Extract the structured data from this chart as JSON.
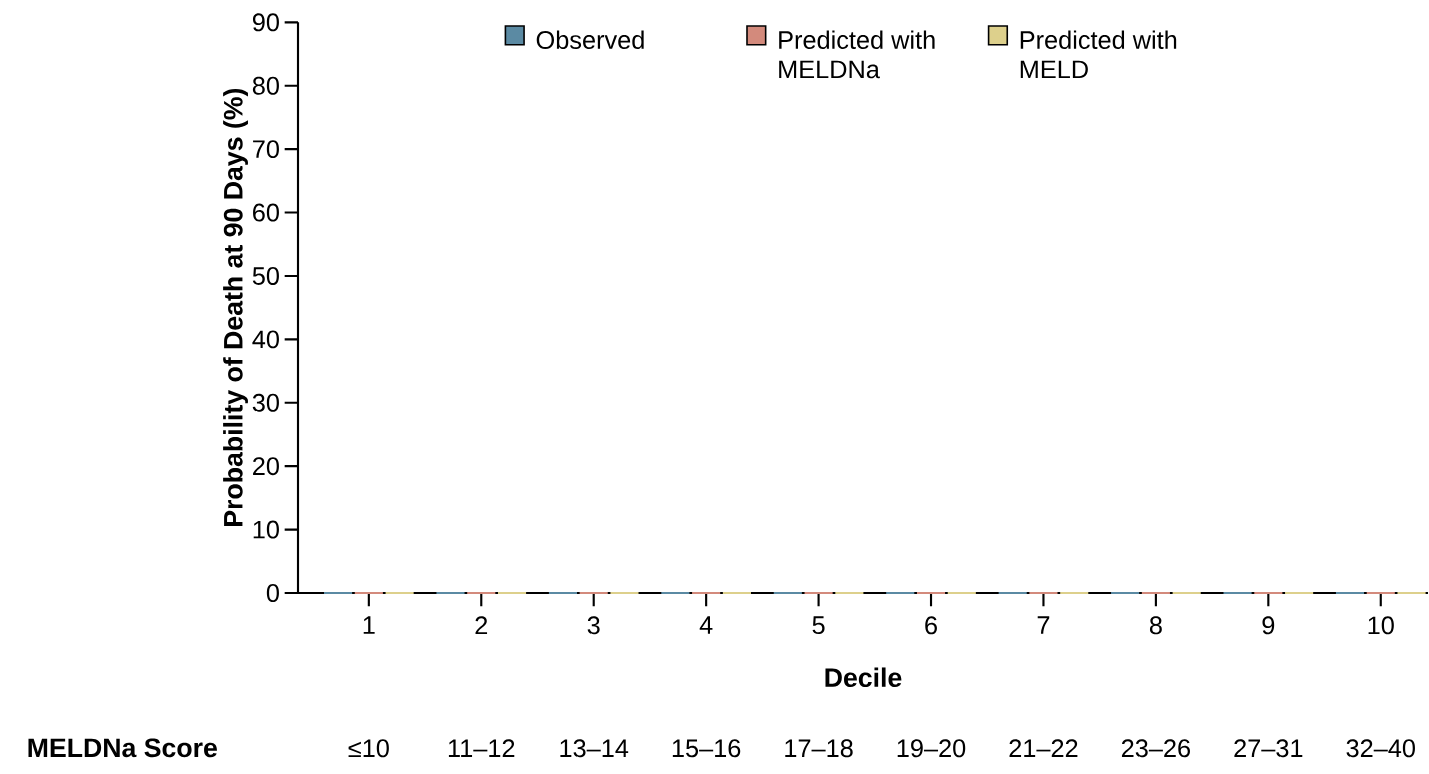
{
  "chart_data": {
    "type": "bar",
    "xlabel": "Decile",
    "ylabel": "Probability of Death at 90 Days (%)",
    "categories": [
      "1",
      "2",
      "3",
      "4",
      "5",
      "6",
      "7",
      "8",
      "9",
      "10"
    ],
    "series": [
      {
        "name": "Observed",
        "color": "#5b8aa3",
        "values": [
          0,
          0,
          0,
          0,
          0,
          0,
          0,
          0,
          0,
          0
        ]
      },
      {
        "name": "Predicted with MELDNa",
        "color": "#d38a7c",
        "values": [
          0,
          0,
          0,
          0,
          0,
          0,
          0,
          0,
          0,
          0
        ]
      },
      {
        "name": "Predicted with MELD",
        "color": "#ddd08c",
        "values": [
          0,
          0,
          0,
          0,
          0,
          0,
          0,
          0,
          0,
          0
        ]
      }
    ],
    "ylim": [
      0,
      90
    ],
    "yticks": [
      0,
      10,
      20,
      30,
      40,
      50,
      60,
      70,
      80,
      90
    ],
    "legend": "top",
    "annotations": [
      "MELDNa Score",
      "≤10",
      "11–12",
      "13–14",
      "15–16",
      "17–18",
      "19–20",
      "21–22",
      "23–26",
      "27–31",
      "32–40"
    ]
  }
}
